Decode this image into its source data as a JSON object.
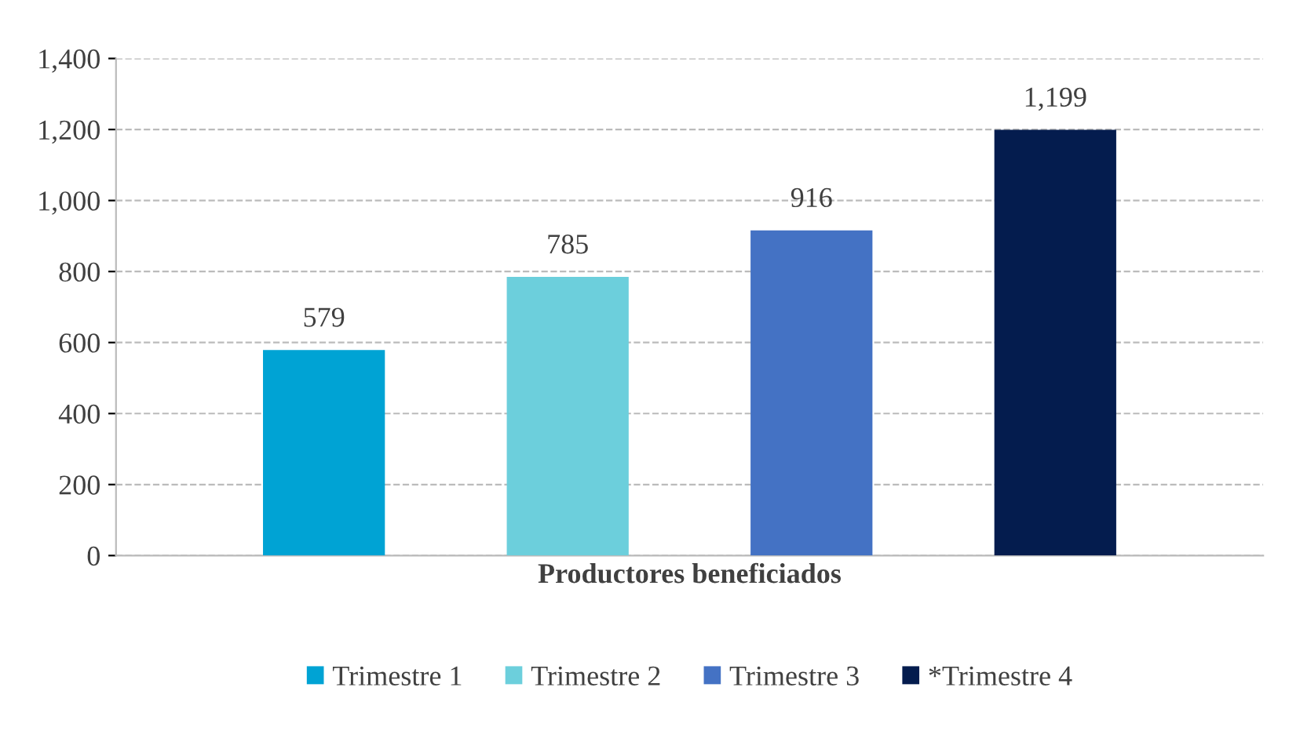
{
  "chart_data": {
    "type": "bar",
    "categories": [
      "Productores beneficiados"
    ],
    "series": [
      {
        "name": "Trimestre 1",
        "color": "#00a3d4",
        "values": [
          579
        ],
        "value_labels": [
          "579"
        ]
      },
      {
        "name": "Trimestre 2",
        "color": "#6ccfdc",
        "values": [
          785
        ],
        "value_labels": [
          "785"
        ]
      },
      {
        "name": "Trimestre 3",
        "color": "#4472c4",
        "values": [
          916
        ],
        "value_labels": [
          "916"
        ]
      },
      {
        "name": "*Trimestre 4",
        "color": "#041c4e",
        "values": [
          1199
        ],
        "value_labels": [
          "1,199"
        ]
      }
    ],
    "ylim": [
      0,
      1400
    ],
    "yticks": [
      0,
      200,
      400,
      600,
      800,
      {
        "value": 1000,
        "label": "1,000"
      },
      {
        "value": 1200,
        "label": "1,200"
      },
      {
        "value": 1400,
        "label": "1,400"
      }
    ],
    "grid": "y",
    "line_style": "dashed",
    "legend": "bottom"
  }
}
